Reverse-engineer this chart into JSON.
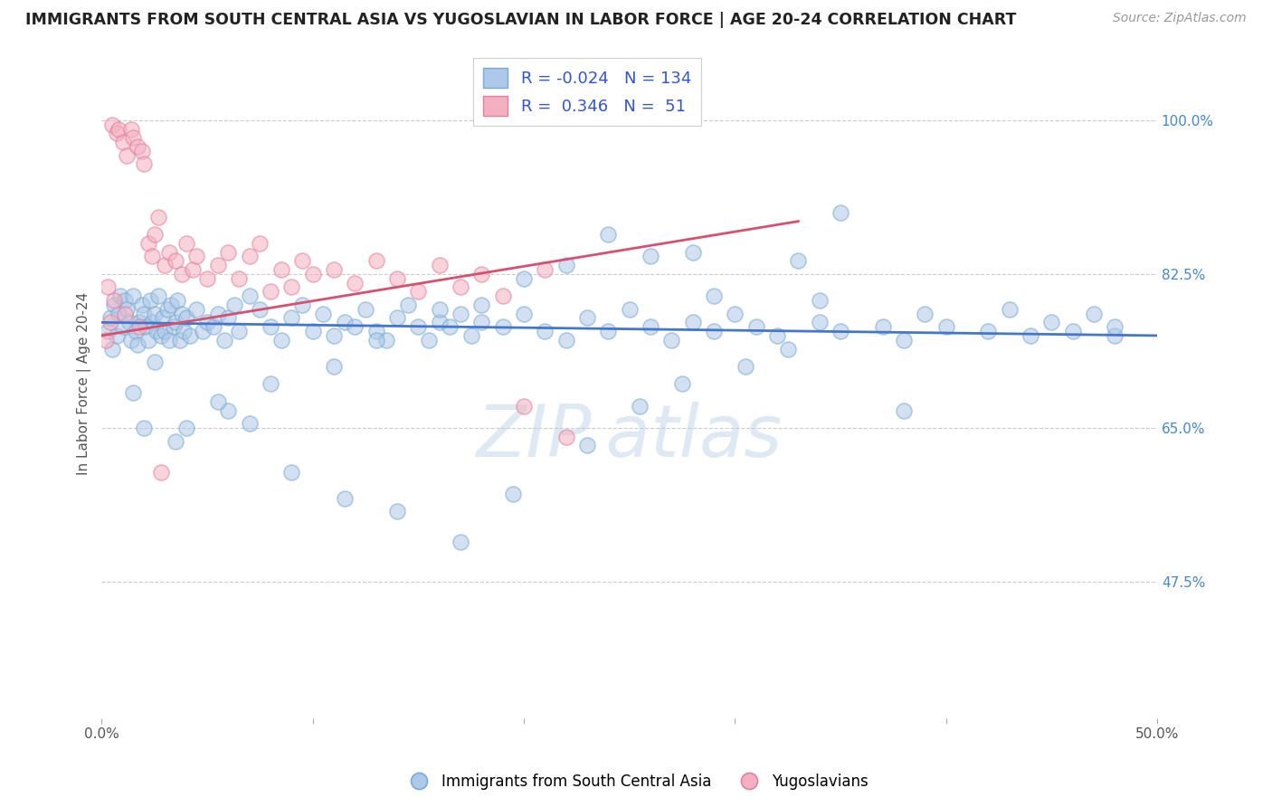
{
  "title": "IMMIGRANTS FROM SOUTH CENTRAL ASIA VS YUGOSLAVIAN IN LABOR FORCE | AGE 20-24 CORRELATION CHART",
  "source": "Source: ZipAtlas.com",
  "ylabel": "In Labor Force | Age 20-24",
  "ytick_values": [
    100.0,
    82.5,
    65.0,
    47.5
  ],
  "ytick_labels": [
    "100.0%",
    "82.5%",
    "65.0%",
    "47.5%"
  ],
  "legend_r_blue": "-0.024",
  "legend_n_blue": "134",
  "legend_r_pink": "0.346",
  "legend_n_pink": "51",
  "legend_label_blue": "Immigrants from South Central Asia",
  "legend_label_pink": "Yugoslavians",
  "blue_color_fill": "#adc8e8",
  "blue_color_edge": "#7aaad0",
  "pink_color_fill": "#f4b0c0",
  "pink_color_edge": "#e080a0",
  "trendline_blue": "#4477cc",
  "trendline_pink": "#d85070",
  "xlim": [
    0,
    50
  ],
  "ylim": [
    32,
    108
  ],
  "blue_trend_x0": 0,
  "blue_trend_x1": 50,
  "blue_trend_y0": 77.0,
  "blue_trend_y1": 75.5,
  "pink_trend_x0": 0,
  "pink_trend_x1": 33,
  "pink_trend_y0": 75.5,
  "pink_trend_y1": 88.5,
  "blue_scatter_x": [
    0.3,
    0.4,
    0.5,
    0.6,
    0.7,
    0.8,
    0.9,
    1.0,
    1.1,
    1.2,
    1.3,
    1.4,
    1.5,
    1.6,
    1.7,
    1.8,
    1.9,
    2.0,
    2.1,
    2.2,
    2.3,
    2.4,
    2.5,
    2.6,
    2.7,
    2.8,
    2.9,
    3.0,
    3.1,
    3.2,
    3.3,
    3.4,
    3.5,
    3.6,
    3.7,
    3.8,
    3.9,
    4.0,
    4.2,
    4.5,
    4.8,
    5.0,
    5.3,
    5.5,
    5.8,
    6.0,
    6.3,
    6.5,
    7.0,
    7.5,
    8.0,
    8.5,
    9.0,
    9.5,
    10.0,
    10.5,
    11.0,
    11.5,
    12.0,
    12.5,
    13.0,
    13.5,
    14.0,
    14.5,
    15.0,
    15.5,
    16.0,
    16.5,
    17.0,
    17.5,
    18.0,
    19.0,
    20.0,
    21.0,
    22.0,
    23.0,
    24.0,
    25.0,
    26.0,
    27.0,
    28.0,
    29.0,
    30.0,
    31.0,
    32.0,
    34.0,
    35.0,
    37.0,
    38.0,
    39.0,
    40.0,
    42.0,
    43.0,
    44.0,
    45.0,
    46.0,
    47.0,
    48.0,
    35.0,
    33.0,
    28.0,
    34.0,
    29.0,
    26.0,
    24.0,
    22.0,
    20.0,
    18.0,
    16.0,
    13.0,
    11.0,
    8.0,
    6.0,
    4.0,
    2.5,
    1.5,
    2.0,
    3.5,
    5.5,
    7.0,
    9.0,
    11.5,
    14.0,
    17.0,
    19.5,
    23.0,
    25.5,
    27.5,
    30.5,
    32.5,
    38.0,
    48.0
  ],
  "blue_scatter_y": [
    76.0,
    77.5,
    74.0,
    79.0,
    75.5,
    78.0,
    80.0,
    76.5,
    79.5,
    78.5,
    77.0,
    75.0,
    80.0,
    76.0,
    74.5,
    77.0,
    79.0,
    78.0,
    76.5,
    75.0,
    79.5,
    77.0,
    78.0,
    76.0,
    80.0,
    75.5,
    77.5,
    76.0,
    78.5,
    75.0,
    79.0,
    76.5,
    77.0,
    79.5,
    75.0,
    78.0,
    76.0,
    77.5,
    75.5,
    78.5,
    76.0,
    77.0,
    76.5,
    78.0,
    75.0,
    77.5,
    79.0,
    76.0,
    80.0,
    78.5,
    76.5,
    75.0,
    77.5,
    79.0,
    76.0,
    78.0,
    75.5,
    77.0,
    76.5,
    78.5,
    76.0,
    75.0,
    77.5,
    79.0,
    76.5,
    75.0,
    77.0,
    76.5,
    78.0,
    75.5,
    77.0,
    76.5,
    78.0,
    76.0,
    75.0,
    77.5,
    76.0,
    78.5,
    76.5,
    75.0,
    77.0,
    76.0,
    78.0,
    76.5,
    75.5,
    77.0,
    76.0,
    76.5,
    75.0,
    78.0,
    76.5,
    76.0,
    78.5,
    75.5,
    77.0,
    76.0,
    78.0,
    75.5,
    89.5,
    84.0,
    85.0,
    79.5,
    80.0,
    84.5,
    87.0,
    83.5,
    82.0,
    79.0,
    78.5,
    75.0,
    72.0,
    70.0,
    67.0,
    65.0,
    72.5,
    69.0,
    65.0,
    63.5,
    68.0,
    65.5,
    60.0,
    57.0,
    55.5,
    52.0,
    57.5,
    63.0,
    67.5,
    70.0,
    72.0,
    74.0,
    67.0,
    76.5
  ],
  "pink_scatter_x": [
    0.2,
    0.4,
    0.5,
    0.7,
    0.8,
    1.0,
    1.2,
    1.4,
    1.5,
    1.7,
    1.9,
    2.0,
    2.2,
    2.4,
    2.5,
    2.7,
    3.0,
    3.2,
    3.5,
    3.8,
    4.0,
    4.3,
    4.5,
    5.0,
    5.5,
    6.0,
    6.5,
    7.0,
    7.5,
    8.0,
    8.5,
    9.0,
    9.5,
    10.0,
    11.0,
    12.0,
    13.0,
    14.0,
    15.0,
    16.0,
    17.0,
    18.0,
    19.0,
    20.0,
    21.0,
    22.0,
    0.3,
    0.6,
    1.1,
    1.8,
    2.8
  ],
  "pink_scatter_y": [
    75.0,
    77.0,
    99.5,
    98.5,
    99.0,
    97.5,
    96.0,
    99.0,
    98.0,
    97.0,
    96.5,
    95.0,
    86.0,
    84.5,
    87.0,
    89.0,
    83.5,
    85.0,
    84.0,
    82.5,
    86.0,
    83.0,
    84.5,
    82.0,
    83.5,
    85.0,
    82.0,
    84.5,
    86.0,
    80.5,
    83.0,
    81.0,
    84.0,
    82.5,
    83.0,
    81.5,
    84.0,
    82.0,
    80.5,
    83.5,
    81.0,
    82.5,
    80.0,
    67.5,
    83.0,
    64.0,
    81.0,
    79.5,
    78.0,
    76.5,
    60.0
  ]
}
